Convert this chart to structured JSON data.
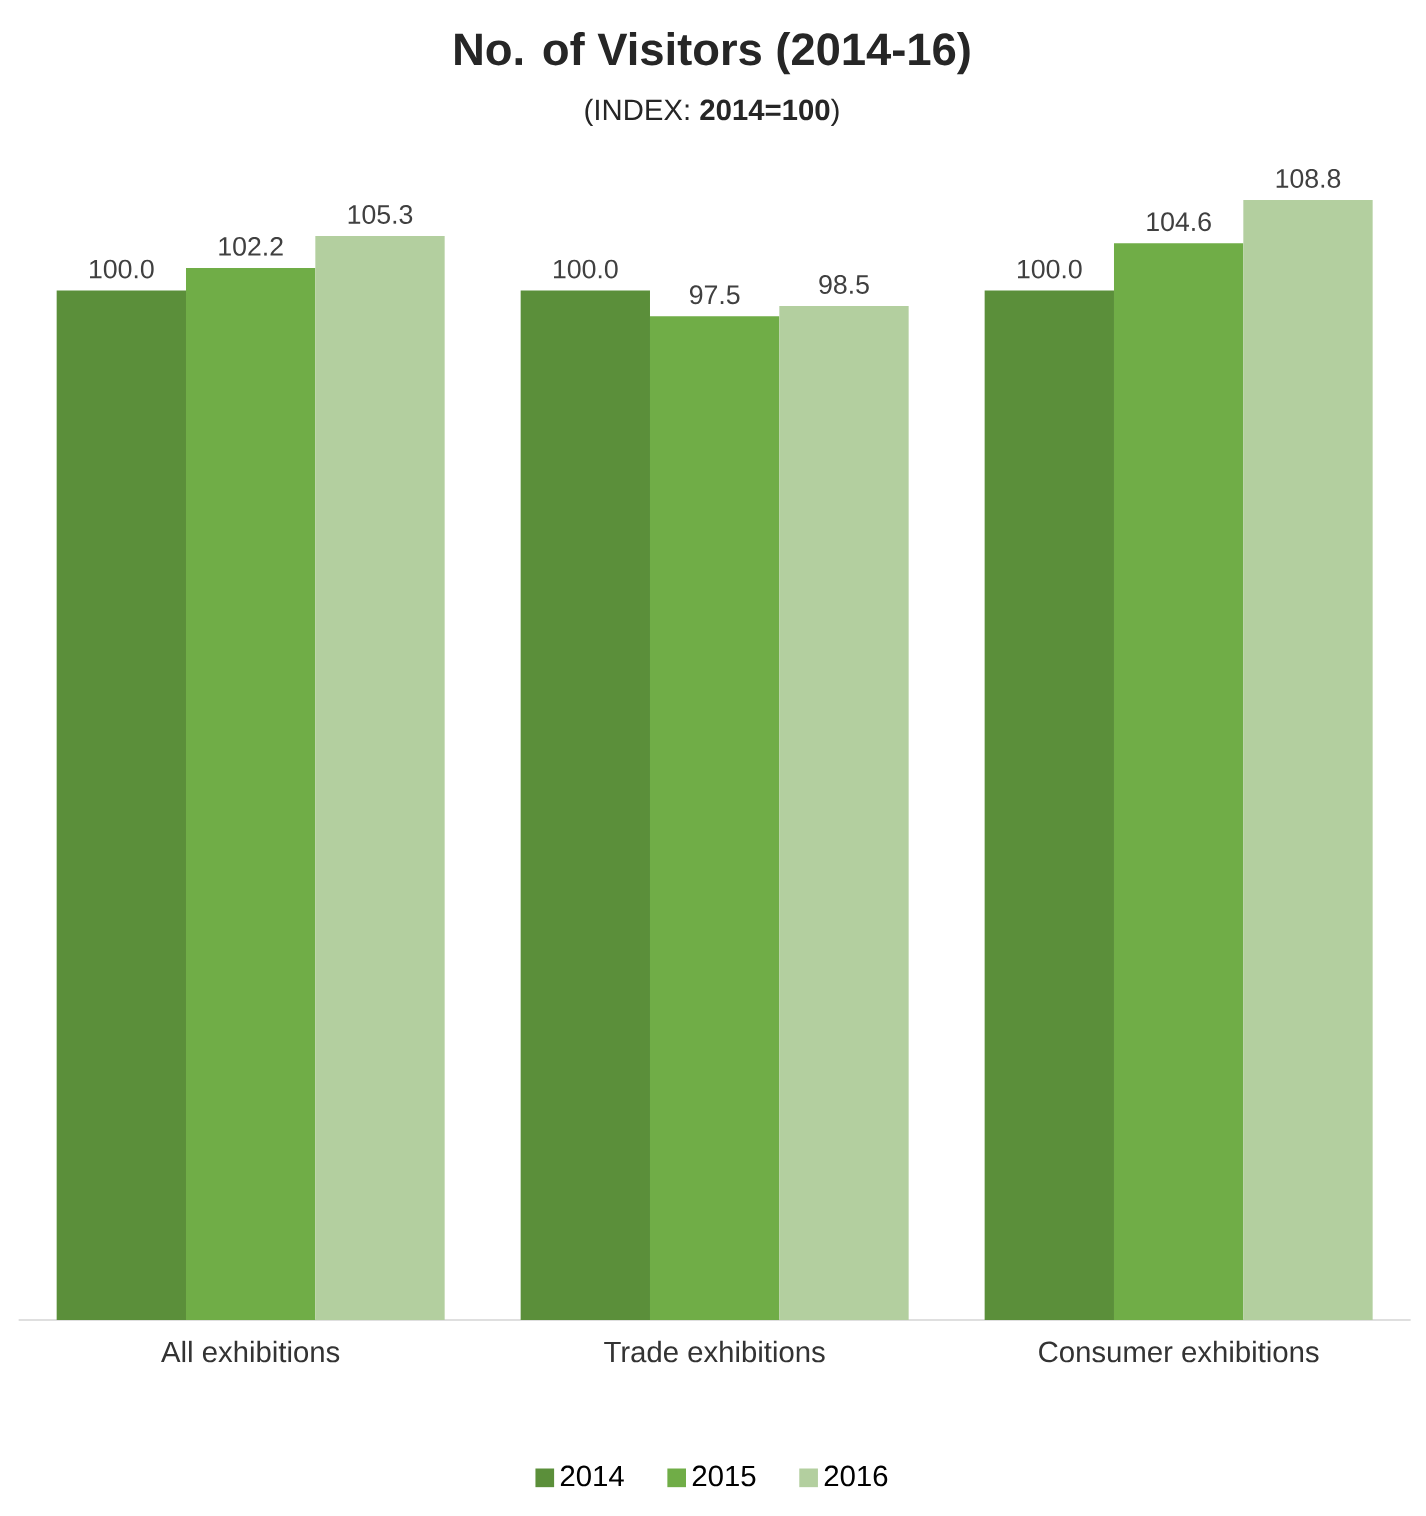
{
  "chart_data": {
    "type": "bar",
    "title": "No. of Visitors (2014-16)",
    "subtitle": "(INDEX: **2014=100**)",
    "categories": [
      "All exhibitions",
      "Trade exhibitions",
      "Consumer exhibitions"
    ],
    "series": [
      {
        "name": "2014",
        "color": "#5b8f3a",
        "values": [
          100.0,
          100.0,
          100.0
        ],
        "value_labels": [
          "100.0",
          "100.0",
          "100.0"
        ]
      },
      {
        "name": "2015",
        "color": "#70ad47",
        "values": [
          102.2,
          97.5,
          104.6
        ],
        "value_labels": [
          "102.2",
          "97.5",
          "104.6"
        ]
      },
      {
        "name": "2016",
        "color": "#b3cf9f",
        "values": [
          105.3,
          98.5,
          108.8
        ],
        "value_labels": [
          "105.3",
          "98.5",
          "108.8"
        ]
      }
    ],
    "legend": "bottom"
  }
}
